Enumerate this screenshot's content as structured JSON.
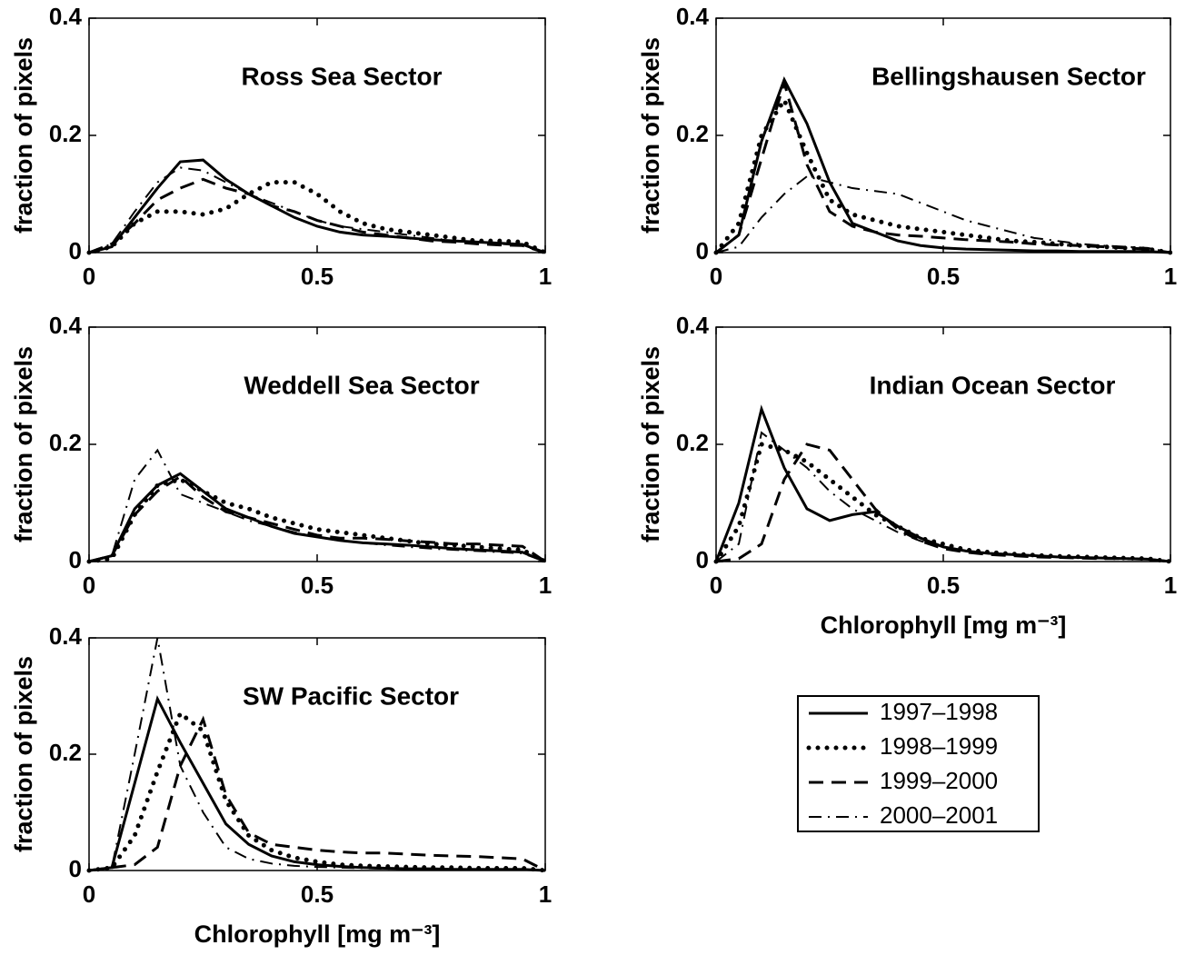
{
  "chart_data": [
    {
      "type": "line",
      "title": "Ross Sea Sector",
      "ylabel": "fraction of pixels",
      "x": [
        0,
        0.05,
        0.1,
        0.15,
        0.2,
        0.25,
        0.3,
        0.35,
        0.4,
        0.45,
        0.5,
        0.55,
        0.6,
        0.65,
        0.7,
        0.75,
        0.8,
        0.85,
        0.9,
        0.95,
        1
      ],
      "xlim": [
        0,
        1
      ],
      "xticks": [
        0,
        0.5,
        1
      ],
      "ylim": [
        0,
        0.4
      ],
      "yticks": [
        0,
        0.2,
        0.4
      ],
      "series": [
        {
          "name": "1997–1998",
          "style": "solid",
          "color": "#000000",
          "values": [
            0,
            0.01,
            0.06,
            0.11,
            0.155,
            0.158,
            0.125,
            0.1,
            0.08,
            0.06,
            0.045,
            0.035,
            0.03,
            0.028,
            0.025,
            0.022,
            0.02,
            0.018,
            0.016,
            0.014,
            0
          ]
        },
        {
          "name": "1998–1999",
          "style": "dotted",
          "color": "#000000",
          "values": [
            0,
            0.01,
            0.05,
            0.07,
            0.07,
            0.065,
            0.075,
            0.1,
            0.12,
            0.12,
            0.1,
            0.07,
            0.05,
            0.04,
            0.035,
            0.03,
            0.025,
            0.02,
            0.02,
            0.018,
            0
          ]
        },
        {
          "name": "1999–2000",
          "style": "dashed",
          "color": "#000000",
          "values": [
            0,
            0.015,
            0.05,
            0.09,
            0.11,
            0.125,
            0.11,
            0.1,
            0.08,
            0.07,
            0.055,
            0.045,
            0.035,
            0.03,
            0.025,
            0.02,
            0.018,
            0.015,
            0.013,
            0.012,
            0
          ]
        },
        {
          "name": "2000–2001",
          "style": "dashdot",
          "color": "#000000",
          "values": [
            0,
            0.015,
            0.07,
            0.12,
            0.145,
            0.14,
            0.12,
            0.1,
            0.085,
            0.07,
            0.055,
            0.045,
            0.04,
            0.035,
            0.03,
            0.025,
            0.02,
            0.018,
            0.015,
            0.012,
            0
          ]
        }
      ]
    },
    {
      "type": "line",
      "title": "Bellingshausen Sector",
      "ylabel": "fraction of pixels",
      "x": [
        0,
        0.05,
        0.1,
        0.15,
        0.2,
        0.25,
        0.3,
        0.35,
        0.4,
        0.45,
        0.5,
        0.55,
        0.6,
        0.65,
        0.7,
        0.75,
        0.8,
        0.85,
        0.9,
        0.95,
        1
      ],
      "xlim": [
        0,
        1
      ],
      "xticks": [
        0,
        0.5,
        1
      ],
      "ylim": [
        0,
        0.4
      ],
      "yticks": [
        0,
        0.2,
        0.4
      ],
      "series": [
        {
          "style": "solid",
          "color": "#000000",
          "values": [
            0,
            0.03,
            0.19,
            0.295,
            0.22,
            0.12,
            0.05,
            0.035,
            0.02,
            0.012,
            0.008,
            0.006,
            0.005,
            0.004,
            0.003,
            0.003,
            0.002,
            0.002,
            0.002,
            0.002,
            0
          ]
        },
        {
          "style": "dotted",
          "color": "#000000",
          "values": [
            0,
            0.05,
            0.2,
            0.26,
            0.17,
            0.09,
            0.065,
            0.055,
            0.045,
            0.04,
            0.035,
            0.03,
            0.025,
            0.02,
            0.018,
            0.015,
            0.012,
            0.01,
            0.008,
            0.006,
            0
          ]
        },
        {
          "style": "dashed",
          "color": "#000000",
          "values": [
            0,
            0.03,
            0.16,
            0.29,
            0.15,
            0.07,
            0.045,
            0.035,
            0.03,
            0.028,
            0.025,
            0.022,
            0.02,
            0.018,
            0.015,
            0.013,
            0.012,
            0.01,
            0.008,
            0.006,
            0
          ]
        },
        {
          "style": "dashdot",
          "color": "#000000",
          "values": [
            0,
            0.01,
            0.06,
            0.1,
            0.13,
            0.12,
            0.11,
            0.105,
            0.1,
            0.085,
            0.07,
            0.055,
            0.045,
            0.035,
            0.025,
            0.02,
            0.015,
            0.012,
            0.01,
            0.008,
            0
          ]
        }
      ]
    },
    {
      "type": "line",
      "title": "Weddell Sea Sector",
      "ylabel": "fraction of pixels",
      "x": [
        0,
        0.05,
        0.1,
        0.15,
        0.2,
        0.25,
        0.3,
        0.35,
        0.4,
        0.45,
        0.5,
        0.55,
        0.6,
        0.65,
        0.7,
        0.75,
        0.8,
        0.85,
        0.9,
        0.95,
        1
      ],
      "xlim": [
        0,
        1
      ],
      "xticks": [
        0,
        0.5,
        1
      ],
      "ylim": [
        0,
        0.4
      ],
      "yticks": [
        0,
        0.2,
        0.4
      ],
      "series": [
        {
          "style": "solid",
          "color": "#000000",
          "values": [
            0,
            0.01,
            0.09,
            0.13,
            0.15,
            0.12,
            0.09,
            0.075,
            0.06,
            0.048,
            0.042,
            0.036,
            0.032,
            0.03,
            0.028,
            0.025,
            0.022,
            0.02,
            0.018,
            0.016,
            0
          ]
        },
        {
          "style": "dotted",
          "color": "#000000",
          "values": [
            0,
            0.005,
            0.08,
            0.13,
            0.14,
            0.12,
            0.1,
            0.09,
            0.075,
            0.065,
            0.055,
            0.05,
            0.045,
            0.04,
            0.035,
            0.03,
            0.028,
            0.025,
            0.022,
            0.02,
            0
          ]
        },
        {
          "style": "dashed",
          "color": "#000000",
          "values": [
            0,
            0.01,
            0.08,
            0.12,
            0.145,
            0.11,
            0.085,
            0.075,
            0.065,
            0.055,
            0.045,
            0.04,
            0.04,
            0.038,
            0.035,
            0.033,
            0.03,
            0.03,
            0.028,
            0.026,
            0
          ]
        },
        {
          "style": "dashdot",
          "color": "#000000",
          "values": [
            0,
            0.01,
            0.14,
            0.19,
            0.115,
            0.1,
            0.085,
            0.07,
            0.06,
            0.05,
            0.042,
            0.036,
            0.032,
            0.028,
            0.025,
            0.022,
            0.02,
            0.018,
            0.016,
            0.014,
            0
          ]
        }
      ]
    },
    {
      "type": "line",
      "title": "Indian Ocean Sector",
      "ylabel": "fraction of pixels",
      "xlabel": "Chlorophyll [mg m⁻³]",
      "x": [
        0,
        0.05,
        0.1,
        0.15,
        0.2,
        0.25,
        0.3,
        0.35,
        0.4,
        0.45,
        0.5,
        0.55,
        0.6,
        0.65,
        0.7,
        0.75,
        0.8,
        0.85,
        0.9,
        0.95,
        1
      ],
      "xlim": [
        0,
        1
      ],
      "xticks": [
        0,
        0.5,
        1
      ],
      "ylim": [
        0,
        0.4
      ],
      "yticks": [
        0,
        0.2,
        0.4
      ],
      "series": [
        {
          "style": "solid",
          "color": "#000000",
          "values": [
            0,
            0.1,
            0.26,
            0.16,
            0.09,
            0.07,
            0.08,
            0.085,
            0.06,
            0.04,
            0.025,
            0.018,
            0.014,
            0.012,
            0.01,
            0.008,
            0.007,
            0.006,
            0.005,
            0.004,
            0
          ]
        },
        {
          "style": "dotted",
          "color": "#000000",
          "values": [
            0,
            0.06,
            0.2,
            0.19,
            0.17,
            0.14,
            0.11,
            0.08,
            0.06,
            0.04,
            0.03,
            0.02,
            0.016,
            0.013,
            0.011,
            0.009,
            0.008,
            0.007,
            0.006,
            0.005,
            0
          ]
        },
        {
          "style": "dashed",
          "color": "#000000",
          "values": [
            0,
            0.005,
            0.03,
            0.14,
            0.2,
            0.19,
            0.14,
            0.09,
            0.055,
            0.035,
            0.022,
            0.016,
            0.012,
            0.01,
            0.008,
            0.007,
            0.006,
            0.005,
            0.005,
            0.004,
            0
          ]
        },
        {
          "style": "dashdot",
          "color": "#000000",
          "values": [
            0,
            0.03,
            0.22,
            0.19,
            0.16,
            0.12,
            0.09,
            0.07,
            0.05,
            0.035,
            0.025,
            0.018,
            0.014,
            0.012,
            0.01,
            0.008,
            0.007,
            0.006,
            0.005,
            0.004,
            0
          ]
        }
      ]
    },
    {
      "type": "line",
      "title": "SW Pacific Sector",
      "ylabel": "fraction of pixels",
      "xlabel": "Chlorophyll [mg m⁻³]",
      "x": [
        0,
        0.05,
        0.1,
        0.15,
        0.2,
        0.25,
        0.3,
        0.35,
        0.4,
        0.45,
        0.5,
        0.55,
        0.6,
        0.65,
        0.7,
        0.75,
        0.8,
        0.85,
        0.9,
        0.95,
        1
      ],
      "xlim": [
        0,
        1
      ],
      "xticks": [
        0,
        0.5,
        1
      ],
      "ylim": [
        0,
        0.4
      ],
      "yticks": [
        0,
        0.2,
        0.4
      ],
      "series": [
        {
          "style": "solid",
          "color": "#000000",
          "values": [
            0,
            0.005,
            0.15,
            0.295,
            0.22,
            0.15,
            0.08,
            0.045,
            0.025,
            0.015,
            0.01,
            0.007,
            0.005,
            0.004,
            0.003,
            0.003,
            0.002,
            0.002,
            0.002,
            0.002,
            0
          ]
        },
        {
          "style": "dotted",
          "color": "#000000",
          "values": [
            0,
            0.005,
            0.06,
            0.17,
            0.27,
            0.24,
            0.12,
            0.06,
            0.035,
            0.022,
            0.015,
            0.01,
            0.008,
            0.007,
            0.006,
            0.005,
            0.005,
            0.004,
            0.004,
            0.004,
            0
          ]
        },
        {
          "style": "dashed",
          "color": "#000000",
          "values": [
            0,
            0.005,
            0.01,
            0.04,
            0.18,
            0.26,
            0.13,
            0.065,
            0.045,
            0.04,
            0.035,
            0.032,
            0.03,
            0.03,
            0.028,
            0.026,
            0.025,
            0.024,
            0.022,
            0.02,
            0
          ]
        },
        {
          "style": "dashdot",
          "color": "#000000",
          "values": [
            0,
            0.005,
            0.2,
            0.4,
            0.18,
            0.1,
            0.04,
            0.02,
            0.012,
            0.008,
            0.006,
            0.005,
            0.004,
            0.003,
            0.003,
            0.002,
            0.002,
            0.002,
            0.002,
            0.002,
            0
          ]
        }
      ]
    }
  ]
}
